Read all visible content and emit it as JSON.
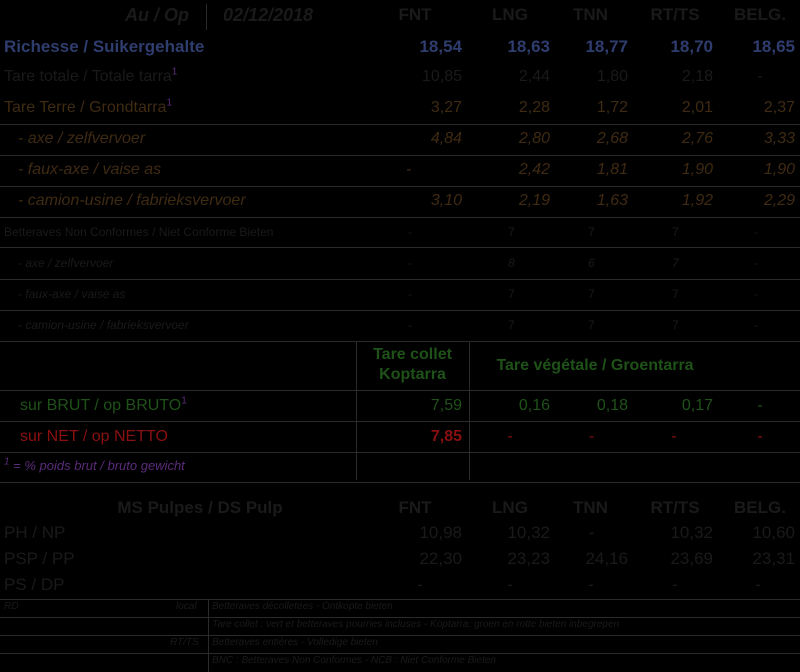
{
  "header": {
    "label": "Au / Op",
    "date": "02/12/2018",
    "columns": [
      "FNT",
      "LNG",
      "TNN",
      "RT/TS",
      "BELG."
    ]
  },
  "rows": [
    {
      "label": "Richesse / Suikergehalte",
      "values": [
        "18,54",
        "18,63",
        "18,77",
        "18,70",
        "18,65"
      ]
    },
    {
      "label": "Tare totale / Totale tarra",
      "sup": "1",
      "values": [
        "10,85",
        "2,44",
        "1,80",
        "2,18",
        "-"
      ]
    },
    {
      "label": "Tare Terre / Grondtarra",
      "sup": "1",
      "values": [
        "3,27",
        "2,28",
        "1,72",
        "2,01",
        "2,37"
      ]
    },
    {
      "label": "- axe / zelfvervoer",
      "values": [
        "4,84",
        "2,80",
        "2,68",
        "2,76",
        "3,33"
      ]
    },
    {
      "label": "- faux-axe / vaise as",
      "values": [
        "-",
        "2,42",
        "1,81",
        "1,90",
        "1,90"
      ]
    },
    {
      "label": "- camion-usine / fabrieksvervoer",
      "values": [
        "3,10",
        "2,19",
        "1,63",
        "1,92",
        "2,29"
      ]
    },
    {
      "label": "Betteraves Non Conformes / Niet Conforme Bieten",
      "values": [
        "-",
        "7",
        "7",
        "7",
        "-"
      ]
    },
    {
      "label": "- axe / zelfvervoer",
      "values": [
        "-",
        "8",
        "6",
        "7",
        "-"
      ]
    },
    {
      "label": "- faux-axe / vaise as",
      "values": [
        "-",
        "7",
        "7",
        "7",
        "-"
      ]
    },
    {
      "label": "- camion-usine / fabrieksvervoer",
      "values": [
        "-",
        "7",
        "7",
        "7",
        "-"
      ]
    }
  ],
  "tare_headers": {
    "collet_line1": "Tare collet",
    "collet_line2": "Koptarra",
    "vegetale": "Tare végétale / Groentarra"
  },
  "brut": {
    "label": "sur BRUT / op BRUTO",
    "sup": "1",
    "values": [
      "7,59",
      "0,16",
      "0,18",
      "0,17",
      "-"
    ]
  },
  "net": {
    "label": "sur NET / op NETTO",
    "values": [
      "7,85",
      "-",
      "-",
      "-",
      "-"
    ]
  },
  "footnote": {
    "sup": "1",
    "text": " = % poids brut / bruto gewicht"
  },
  "pulp": {
    "title": "MS Pulpes / DS Pulp",
    "columns": [
      "FNT",
      "LNG",
      "TNN",
      "RT/TS",
      "BELG."
    ],
    "rows": [
      {
        "label": "PH / NP",
        "values": [
          "10,98",
          "10,32",
          "-",
          "10,32",
          "10,60"
        ]
      },
      {
        "label": "PSP / PP",
        "values": [
          "22,30",
          "23,23",
          "24,16",
          "23,69",
          "23,31"
        ]
      },
      {
        "label": "PS / DP",
        "values": [
          "-",
          "-",
          "-",
          "-",
          "-"
        ]
      }
    ]
  },
  "legend": [
    {
      "code": "RD",
      "sub": "local",
      "text": "Betteraves décolletées - Ontkopte bieten"
    },
    {
      "code": "",
      "sub": "",
      "text": "Tare collet : vert et betteraves pourries incluses - Koptarra: groen en rotte bieten inbegrepen"
    },
    {
      "code": "",
      "sub": "RT/TS",
      "text": "Betteraves entières - Volledige bieten"
    },
    {
      "code": "",
      "sub": "",
      "text": "BNC : Betteraves Non Conformes - NCB : Niet Conforme Bieten"
    }
  ]
}
